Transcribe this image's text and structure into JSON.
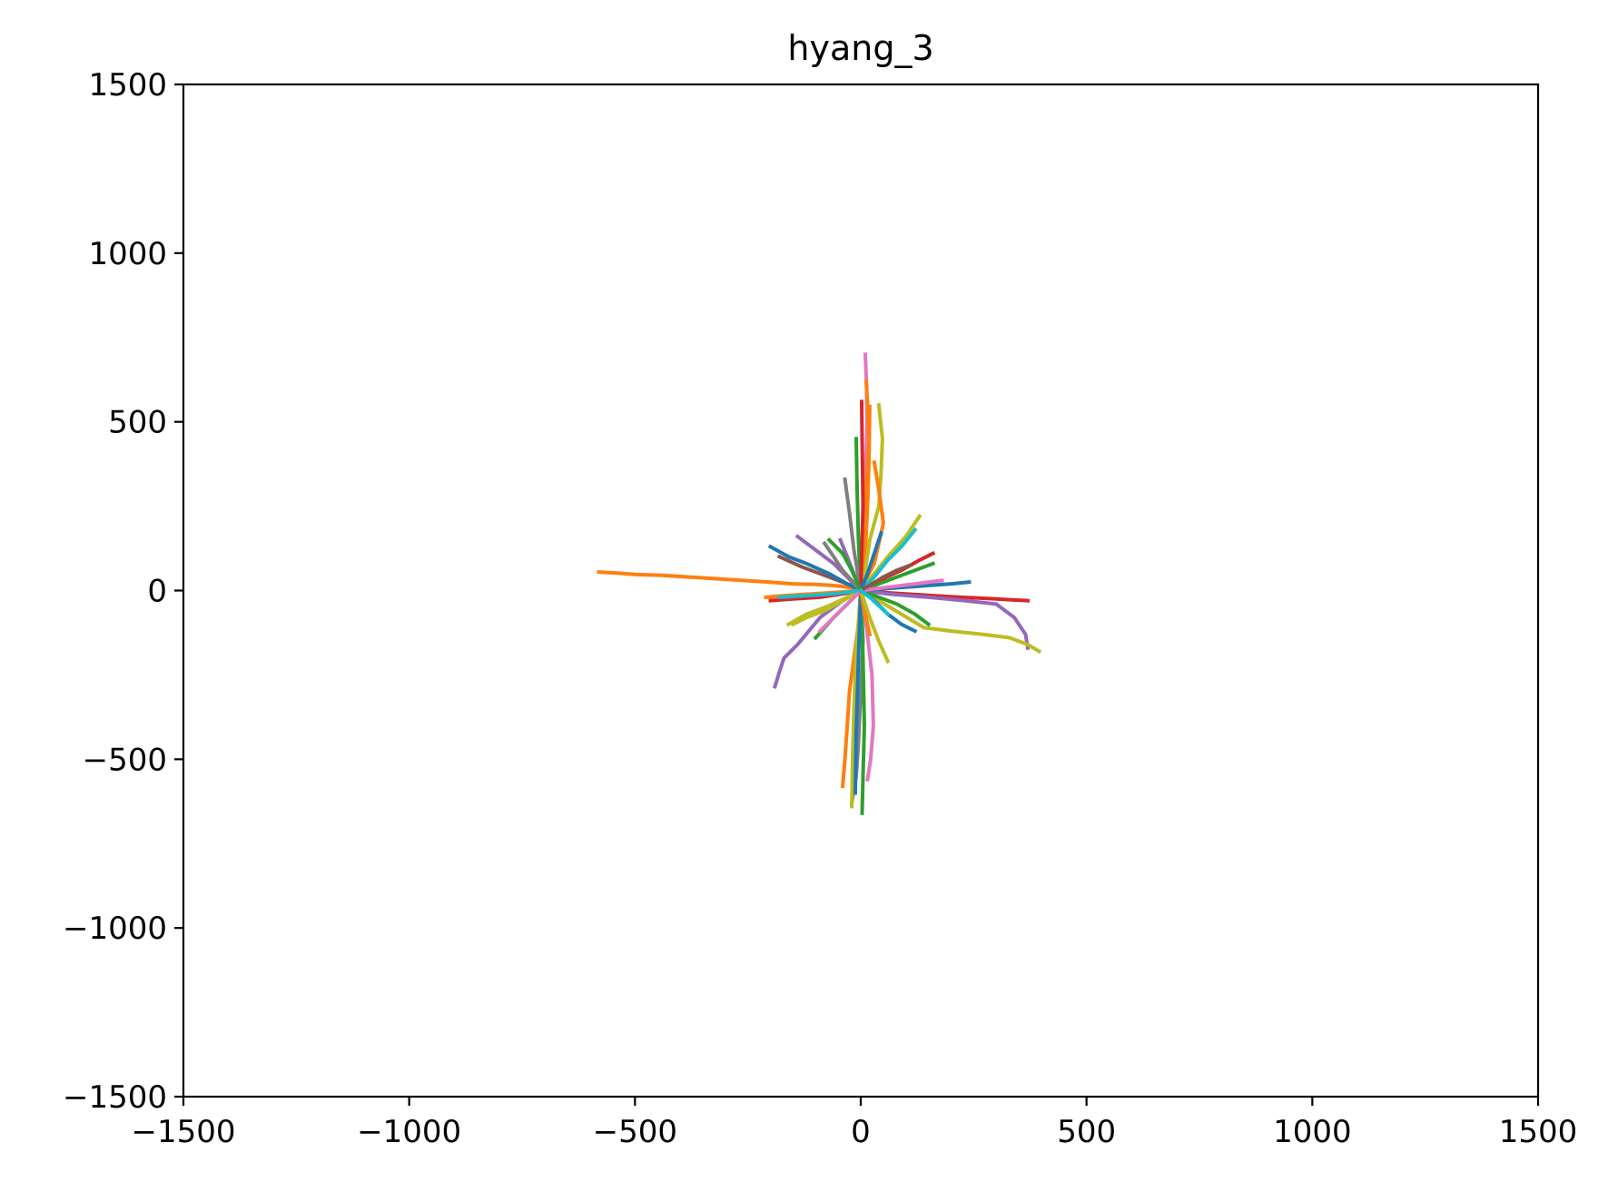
{
  "chart_data": {
    "type": "line",
    "title": "hyang_3",
    "xlabel": "",
    "ylabel": "",
    "xlim": [
      -1500,
      1500
    ],
    "ylim": [
      -1500,
      1500
    ],
    "x_ticks": [
      -1500,
      -1000,
      -500,
      0,
      500,
      1000,
      1500
    ],
    "y_ticks": [
      -1500,
      -1000,
      -500,
      0,
      500,
      1000,
      1500
    ],
    "x_tick_labels": [
      "−1500",
      "−1000",
      "−500",
      "0",
      "500",
      "1000",
      "1500"
    ],
    "y_tick_labels": [
      "−1500",
      "−1000",
      "−500",
      "0",
      "500",
      "1000",
      "1500"
    ],
    "grid": false,
    "legend": "none",
    "colors": [
      "#1f77b4",
      "#ff7f0e",
      "#2ca02c",
      "#d62728",
      "#9467bd",
      "#8c564b",
      "#e377c2",
      "#7f7f7f",
      "#bcbd22",
      "#17becf"
    ],
    "series": [
      {
        "x": [
          0,
          -5,
          -20,
          -40,
          -70,
          -100,
          -150,
          -200,
          -260,
          -320,
          -380,
          -440,
          -500,
          -540,
          -580
        ],
        "y": [
          0,
          5,
          8,
          12,
          16,
          18,
          20,
          25,
          30,
          35,
          40,
          45,
          48,
          52,
          55
        ],
        "color_index": 1
      },
      {
        "x": [
          0,
          40,
          100,
          160,
          220,
          260,
          300,
          340,
          370
        ],
        "y": [
          0,
          -5,
          -10,
          -15,
          -20,
          -22,
          -25,
          -28,
          -30
        ],
        "color_index": 3
      },
      {
        "x": [
          0,
          60,
          150,
          230,
          300,
          340,
          365,
          370
        ],
        "y": [
          0,
          -10,
          -20,
          -30,
          -40,
          -80,
          -130,
          -170
        ],
        "color_index": 4
      },
      {
        "x": [
          0,
          40,
          90,
          140,
          200,
          270,
          330,
          370,
          395
        ],
        "y": [
          0,
          -30,
          -70,
          -110,
          -120,
          -130,
          -140,
          -160,
          -180
        ],
        "color_index": 8
      },
      {
        "x": [
          0,
          -40,
          -90,
          -140,
          -170,
          -180,
          -190
        ],
        "y": [
          0,
          -30,
          -80,
          -160,
          -200,
          -240,
          -285
        ],
        "color_index": 4
      },
      {
        "x": [
          0,
          5,
          8,
          10,
          12,
          14,
          13,
          10
        ],
        "y": [
          0,
          100,
          200,
          300,
          400,
          500,
          600,
          700
        ],
        "color_index": 6
      },
      {
        "x": [
          0,
          8,
          12,
          18,
          15,
          12
        ],
        "y": [
          0,
          150,
          300,
          450,
          550,
          620
        ],
        "color_index": 1
      },
      {
        "x": [
          0,
          10,
          15,
          18,
          20
        ],
        "y": [
          0,
          120,
          250,
          380,
          545
        ],
        "color_index": 1
      },
      {
        "x": [
          0,
          10,
          20,
          40,
          45,
          48,
          40
        ],
        "y": [
          0,
          60,
          150,
          250,
          350,
          450,
          550
        ],
        "color_index": 8
      },
      {
        "x": [
          0,
          -5,
          -8,
          -10
        ],
        "y": [
          0,
          150,
          300,
          450
        ],
        "color_index": 2
      },
      {
        "x": [
          0,
          -15,
          -25,
          -35
        ],
        "y": [
          0,
          120,
          230,
          330
        ],
        "color_index": 7
      },
      {
        "x": [
          0,
          5,
          2
        ],
        "y": [
          0,
          250,
          560
        ],
        "color_index": 3
      },
      {
        "x": [
          0,
          10,
          30,
          50,
          40,
          30
        ],
        "y": [
          0,
          30,
          80,
          200,
          300,
          380
        ],
        "color_index": 1
      },
      {
        "x": [
          0,
          -5,
          -15,
          -25,
          -30,
          -35,
          -40
        ],
        "y": [
          0,
          -100,
          -200,
          -300,
          -400,
          -500,
          -580
        ],
        "color_index": 1
      },
      {
        "x": [
          0,
          5,
          0,
          -5,
          -10,
          -20
        ],
        "y": [
          0,
          -150,
          -300,
          -450,
          -550,
          -630
        ],
        "color_index": 7
      },
      {
        "x": [
          0,
          5,
          8,
          5,
          3
        ],
        "y": [
          0,
          -200,
          -400,
          -550,
          -660
        ],
        "color_index": 2
      },
      {
        "x": [
          0,
          12,
          25,
          28,
          22,
          15
        ],
        "y": [
          0,
          -100,
          -250,
          -400,
          -500,
          -560
        ],
        "color_index": 6
      },
      {
        "x": [
          0,
          -10,
          -15,
          -18,
          -20
        ],
        "y": [
          0,
          -180,
          -350,
          -500,
          -640
        ],
        "color_index": 8
      },
      {
        "x": [
          0,
          -5,
          -10,
          -12
        ],
        "y": [
          0,
          -200,
          -420,
          -600
        ],
        "color_index": 0
      },
      {
        "x": [
          0,
          -20,
          -50,
          -90,
          -130,
          -180
        ],
        "y": [
          0,
          15,
          30,
          50,
          70,
          100
        ],
        "color_index": 5
      },
      {
        "x": [
          0,
          -30,
          -70,
          -120,
          -160,
          -200
        ],
        "y": [
          0,
          20,
          50,
          80,
          100,
          130
        ],
        "color_index": 0
      },
      {
        "x": [
          0,
          -40,
          -90,
          -150,
          -200
        ],
        "y": [
          0,
          -10,
          -20,
          -25,
          -30
        ],
        "color_index": 3
      },
      {
        "x": [
          0,
          -50,
          -110,
          -170,
          -210
        ],
        "y": [
          0,
          -5,
          -10,
          -15,
          -20
        ],
        "color_index": 1
      },
      {
        "x": [
          0,
          -30,
          -70,
          -120,
          -160
        ],
        "y": [
          0,
          -20,
          -45,
          -70,
          -100
        ],
        "color_index": 8
      },
      {
        "x": [
          0,
          -30,
          -60,
          -100,
          -140
        ],
        "y": [
          0,
          40,
          80,
          120,
          160
        ],
        "color_index": 4
      },
      {
        "x": [
          0,
          40,
          80,
          120,
          160
        ],
        "y": [
          0,
          20,
          40,
          60,
          80
        ],
        "color_index": 2
      },
      {
        "x": [
          0,
          50,
          100,
          150,
          200,
          240
        ],
        "y": [
          0,
          5,
          10,
          15,
          20,
          25
        ],
        "color_index": 0
      },
      {
        "x": [
          0,
          30,
          60,
          100,
          130
        ],
        "y": [
          0,
          50,
          100,
          160,
          220
        ],
        "color_index": 8
      },
      {
        "x": [
          0,
          30,
          60,
          90,
          120
        ],
        "y": [
          0,
          40,
          90,
          130,
          180
        ],
        "color_index": 9
      },
      {
        "x": [
          0,
          40,
          90,
          130,
          160
        ],
        "y": [
          0,
          30,
          60,
          90,
          110
        ],
        "color_index": 3
      },
      {
        "x": [
          0,
          40,
          80,
          120,
          150
        ],
        "y": [
          0,
          -20,
          -40,
          -70,
          -100
        ],
        "color_index": 2
      },
      {
        "x": [
          0,
          30,
          60,
          90,
          120
        ],
        "y": [
          0,
          -30,
          -70,
          -100,
          -120
        ],
        "color_index": 0
      },
      {
        "x": [
          0,
          5,
          10,
          15,
          20
        ],
        "y": [
          0,
          -40,
          -70,
          -100,
          -130
        ],
        "color_index": 1
      },
      {
        "x": [
          0,
          20,
          40,
          60
        ],
        "y": [
          0,
          -80,
          -150,
          -210
        ],
        "color_index": 8
      },
      {
        "x": [
          0,
          -30,
          -60,
          -80,
          -100
        ],
        "y": [
          0,
          -40,
          -80,
          -110,
          -140
        ],
        "color_index": 2
      },
      {
        "x": [
          0,
          -40,
          -80,
          -120,
          -150
        ],
        "y": [
          0,
          -30,
          -60,
          -80,
          -100
        ],
        "color_index": 8
      },
      {
        "x": [
          0,
          -15,
          -30,
          -45
        ],
        "y": [
          0,
          50,
          100,
          150
        ],
        "color_index": 4
      },
      {
        "x": [
          0,
          -20,
          -40,
          -60,
          -80
        ],
        "y": [
          0,
          30,
          60,
          100,
          140
        ],
        "color_index": 7
      },
      {
        "x": [
          0,
          15,
          30,
          45
        ],
        "y": [
          0,
          50,
          110,
          170
        ],
        "color_index": 0
      },
      {
        "x": [
          0,
          60,
          120,
          180
        ],
        "y": [
          0,
          10,
          20,
          30
        ],
        "color_index": 6
      },
      {
        "x": [
          0,
          -60,
          -120,
          -180
        ],
        "y": [
          0,
          -10,
          -15,
          -20
        ],
        "color_index": 9
      },
      {
        "x": [
          0,
          -30,
          -60,
          -90
        ],
        "y": [
          0,
          -40,
          -80,
          -120
        ],
        "color_index": 6
      },
      {
        "x": [
          0,
          25,
          50,
          80,
          110
        ],
        "y": [
          0,
          20,
          40,
          60,
          75
        ],
        "color_index": 5
      },
      {
        "x": [
          0,
          -20,
          -40,
          -70
        ],
        "y": [
          0,
          60,
          110,
          150
        ],
        "color_index": 2
      },
      {
        "x": [
          0,
          20,
          40,
          60
        ],
        "y": [
          0,
          -20,
          -45,
          -70
        ],
        "color_index": 9
      }
    ]
  }
}
